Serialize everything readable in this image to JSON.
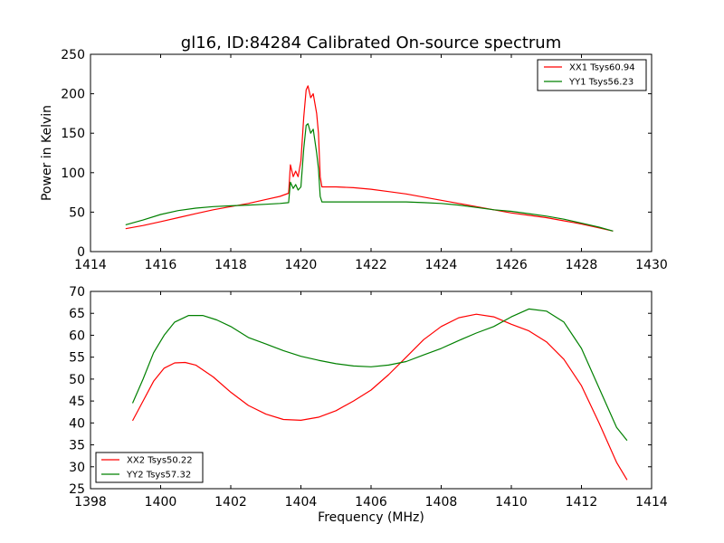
{
  "chart_data": [
    {
      "type": "line",
      "title": "gl16, ID:84284 Calibrated On-source spectrum",
      "xlabel": "",
      "ylabel": "Power in Kelvin",
      "xlim": [
        1414,
        1430
      ],
      "ylim": [
        0,
        250
      ],
      "xticks": [
        "1414",
        "1416",
        "1418",
        "1420",
        "1422",
        "1424",
        "1426",
        "1428",
        "1430"
      ],
      "yticks": [
        "0",
        "50",
        "100",
        "150",
        "200",
        "250"
      ],
      "legend_position": "top-right",
      "series": [
        {
          "name": "XX1 Tsys60.94",
          "color": "#ff0000",
          "points": [
            [
              1415.0,
              29
            ],
            [
              1415.5,
              33
            ],
            [
              1416.0,
              38
            ],
            [
              1416.5,
              43
            ],
            [
              1417.0,
              48
            ],
            [
              1417.5,
              53
            ],
            [
              1418.0,
              57
            ],
            [
              1418.5,
              61
            ],
            [
              1419.0,
              66
            ],
            [
              1419.4,
              70
            ],
            [
              1419.65,
              74
            ],
            [
              1419.7,
              110
            ],
            [
              1419.78,
              95
            ],
            [
              1419.85,
              102
            ],
            [
              1419.92,
              95
            ],
            [
              1420.0,
              115
            ],
            [
              1420.08,
              170
            ],
            [
              1420.15,
              205
            ],
            [
              1420.2,
              210
            ],
            [
              1420.28,
              195
            ],
            [
              1420.35,
              200
            ],
            [
              1420.45,
              175
            ],
            [
              1420.5,
              150
            ],
            [
              1420.55,
              95
            ],
            [
              1420.6,
              82
            ],
            [
              1421.0,
              82
            ],
            [
              1421.5,
              81
            ],
            [
              1422.0,
              79
            ],
            [
              1422.5,
              76
            ],
            [
              1423.0,
              73
            ],
            [
              1423.5,
              69
            ],
            [
              1424.0,
              65
            ],
            [
              1424.5,
              61
            ],
            [
              1425.0,
              57
            ],
            [
              1425.5,
              53
            ],
            [
              1426.0,
              49
            ],
            [
              1426.5,
              46
            ],
            [
              1427.0,
              43
            ],
            [
              1427.5,
              39
            ],
            [
              1428.0,
              35
            ],
            [
              1428.5,
              30
            ],
            [
              1428.9,
              26
            ]
          ]
        },
        {
          "name": "YY1 Tsys56.23",
          "color": "#008000",
          "points": [
            [
              1415.0,
              34
            ],
            [
              1415.5,
              40
            ],
            [
              1416.0,
              47
            ],
            [
              1416.5,
              52
            ],
            [
              1417.0,
              55
            ],
            [
              1417.5,
              57
            ],
            [
              1418.0,
              58
            ],
            [
              1418.5,
              59
            ],
            [
              1419.0,
              60
            ],
            [
              1419.4,
              61
            ],
            [
              1419.65,
              62
            ],
            [
              1419.7,
              88
            ],
            [
              1419.78,
              80
            ],
            [
              1419.85,
              85
            ],
            [
              1419.92,
              78
            ],
            [
              1420.0,
              82
            ],
            [
              1420.08,
              130
            ],
            [
              1420.15,
              160
            ],
            [
              1420.2,
              162
            ],
            [
              1420.28,
              150
            ],
            [
              1420.35,
              155
            ],
            [
              1420.45,
              125
            ],
            [
              1420.5,
              105
            ],
            [
              1420.55,
              70
            ],
            [
              1420.6,
              63
            ],
            [
              1421.0,
              63
            ],
            [
              1421.5,
              63
            ],
            [
              1422.0,
              63
            ],
            [
              1422.5,
              63
            ],
            [
              1423.0,
              63
            ],
            [
              1423.5,
              62
            ],
            [
              1424.0,
              61
            ],
            [
              1424.5,
              59
            ],
            [
              1425.0,
              56
            ],
            [
              1425.5,
              53
            ],
            [
              1426.0,
              51
            ],
            [
              1426.5,
              48
            ],
            [
              1427.0,
              45
            ],
            [
              1427.5,
              41
            ],
            [
              1428.0,
              36
            ],
            [
              1428.5,
              31
            ],
            [
              1428.9,
              26
            ]
          ]
        }
      ]
    },
    {
      "type": "line",
      "title": "",
      "xlabel": "Frequency (MHz)",
      "ylabel": "",
      "xlim": [
        1398,
        1414
      ],
      "ylim": [
        25,
        70
      ],
      "xticks": [
        "1398",
        "1400",
        "1402",
        "1404",
        "1406",
        "1408",
        "1410",
        "1412",
        "1414"
      ],
      "yticks": [
        "25",
        "30",
        "35",
        "40",
        "45",
        "50",
        "55",
        "60",
        "65",
        "70"
      ],
      "legend_position": "bottom-left",
      "series": [
        {
          "name": "XX2 Tsys50.22",
          "color": "#ff0000",
          "points": [
            [
              1399.2,
              40.5
            ],
            [
              1399.5,
              45
            ],
            [
              1399.8,
              49.5
            ],
            [
              1400.1,
              52.5
            ],
            [
              1400.4,
              53.7
            ],
            [
              1400.7,
              53.8
            ],
            [
              1401.0,
              53.2
            ],
            [
              1401.5,
              50.5
            ],
            [
              1402.0,
              47
            ],
            [
              1402.5,
              44
            ],
            [
              1403.0,
              42
            ],
            [
              1403.5,
              40.8
            ],
            [
              1404.0,
              40.6
            ],
            [
              1404.5,
              41.3
            ],
            [
              1405.0,
              42.8
            ],
            [
              1405.5,
              45
            ],
            [
              1406.0,
              47.5
            ],
            [
              1406.5,
              51
            ],
            [
              1407.0,
              55
            ],
            [
              1407.5,
              59
            ],
            [
              1408.0,
              62
            ],
            [
              1408.5,
              64
            ],
            [
              1409.0,
              64.8
            ],
            [
              1409.5,
              64.2
            ],
            [
              1410.0,
              62.5
            ],
            [
              1410.5,
              61
            ],
            [
              1411.0,
              58.5
            ],
            [
              1411.5,
              54.5
            ],
            [
              1412.0,
              48.5
            ],
            [
              1412.5,
              40
            ],
            [
              1413.0,
              31
            ],
            [
              1413.3,
              27
            ]
          ]
        },
        {
          "name": "YY2 Tsys57.32",
          "color": "#008000",
          "points": [
            [
              1399.2,
              44.5
            ],
            [
              1399.5,
              50
            ],
            [
              1399.8,
              56
            ],
            [
              1400.1,
              60
            ],
            [
              1400.4,
              63
            ],
            [
              1400.8,
              64.5
            ],
            [
              1401.2,
              64.5
            ],
            [
              1401.6,
              63.5
            ],
            [
              1402.0,
              62
            ],
            [
              1402.5,
              59.5
            ],
            [
              1403.0,
              58
            ],
            [
              1403.5,
              56.5
            ],
            [
              1404.0,
              55.2
            ],
            [
              1404.5,
              54.3
            ],
            [
              1405.0,
              53.5
            ],
            [
              1405.5,
              53
            ],
            [
              1406.0,
              52.8
            ],
            [
              1406.5,
              53.2
            ],
            [
              1407.0,
              54
            ],
            [
              1407.5,
              55.5
            ],
            [
              1408.0,
              57
            ],
            [
              1408.5,
              58.8
            ],
            [
              1409.0,
              60.5
            ],
            [
              1409.5,
              62
            ],
            [
              1410.0,
              64.2
            ],
            [
              1410.5,
              66
            ],
            [
              1411.0,
              65.5
            ],
            [
              1411.5,
              63
            ],
            [
              1412.0,
              57
            ],
            [
              1412.5,
              48
            ],
            [
              1413.0,
              39
            ],
            [
              1413.3,
              36
            ]
          ]
        }
      ]
    }
  ]
}
